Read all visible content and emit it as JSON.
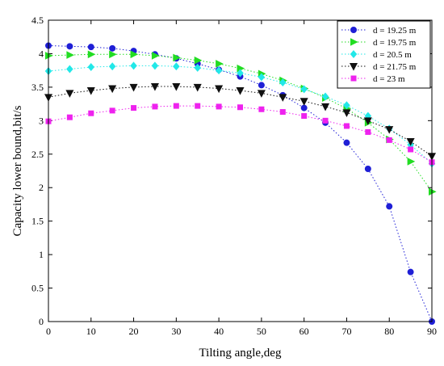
{
  "chart_data": {
    "type": "line",
    "xlabel": "Tilting angle,deg",
    "ylabel": "Capacity lower bound,bit/s",
    "xlim": [
      0,
      90
    ],
    "ylim": [
      0,
      4.5
    ],
    "xticks": [
      "0",
      "10",
      "20",
      "30",
      "40",
      "50",
      "60",
      "70",
      "80",
      "90"
    ],
    "yticks": [
      "0",
      "0.5",
      "1",
      "1.5",
      "2",
      "2.5",
      "3",
      "3.5",
      "4",
      "4.5"
    ],
    "grid": false,
    "legend_position": "top-right",
    "x": [
      0,
      5,
      10,
      15,
      20,
      25,
      30,
      35,
      40,
      45,
      50,
      55,
      60,
      65,
      70,
      75,
      80,
      85,
      90
    ],
    "series": [
      {
        "name": "d = 19.25 m",
        "color": "#1f1fd6",
        "marker": "circle",
        "values": [
          4.12,
          4.11,
          4.1,
          4.08,
          4.04,
          3.99,
          3.93,
          3.85,
          3.76,
          3.66,
          3.53,
          3.38,
          3.19,
          2.97,
          2.67,
          2.28,
          1.72,
          0.74,
          0.0
        ]
      },
      {
        "name": "d = 19.75 m",
        "color": "#22dd22",
        "marker": "triangle-right",
        "values": [
          3.97,
          3.98,
          3.99,
          3.99,
          3.99,
          3.97,
          3.94,
          3.9,
          3.85,
          3.78,
          3.7,
          3.6,
          3.48,
          3.34,
          3.18,
          2.97,
          2.72,
          2.39,
          1.94
        ]
      },
      {
        "name": "d = 20.5 m",
        "color": "#22e8e8",
        "marker": "diamond",
        "values": [
          3.74,
          3.77,
          3.8,
          3.81,
          3.82,
          3.82,
          3.81,
          3.79,
          3.75,
          3.71,
          3.65,
          3.57,
          3.47,
          3.36,
          3.23,
          3.07,
          2.88,
          2.64,
          2.36
        ]
      },
      {
        "name": "d = 21.75 m",
        "color": "#111111",
        "marker": "triangle-down",
        "values": [
          3.35,
          3.41,
          3.45,
          3.48,
          3.5,
          3.51,
          3.51,
          3.5,
          3.48,
          3.45,
          3.41,
          3.35,
          3.29,
          3.21,
          3.12,
          3.0,
          2.87,
          2.69,
          2.47
        ]
      },
      {
        "name": "d = 23 m",
        "color": "#ee22ee",
        "marker": "square",
        "values": [
          2.99,
          3.05,
          3.11,
          3.15,
          3.19,
          3.21,
          3.22,
          3.22,
          3.21,
          3.2,
          3.17,
          3.13,
          3.07,
          3.0,
          2.92,
          2.83,
          2.71,
          2.57,
          2.38
        ]
      }
    ]
  }
}
